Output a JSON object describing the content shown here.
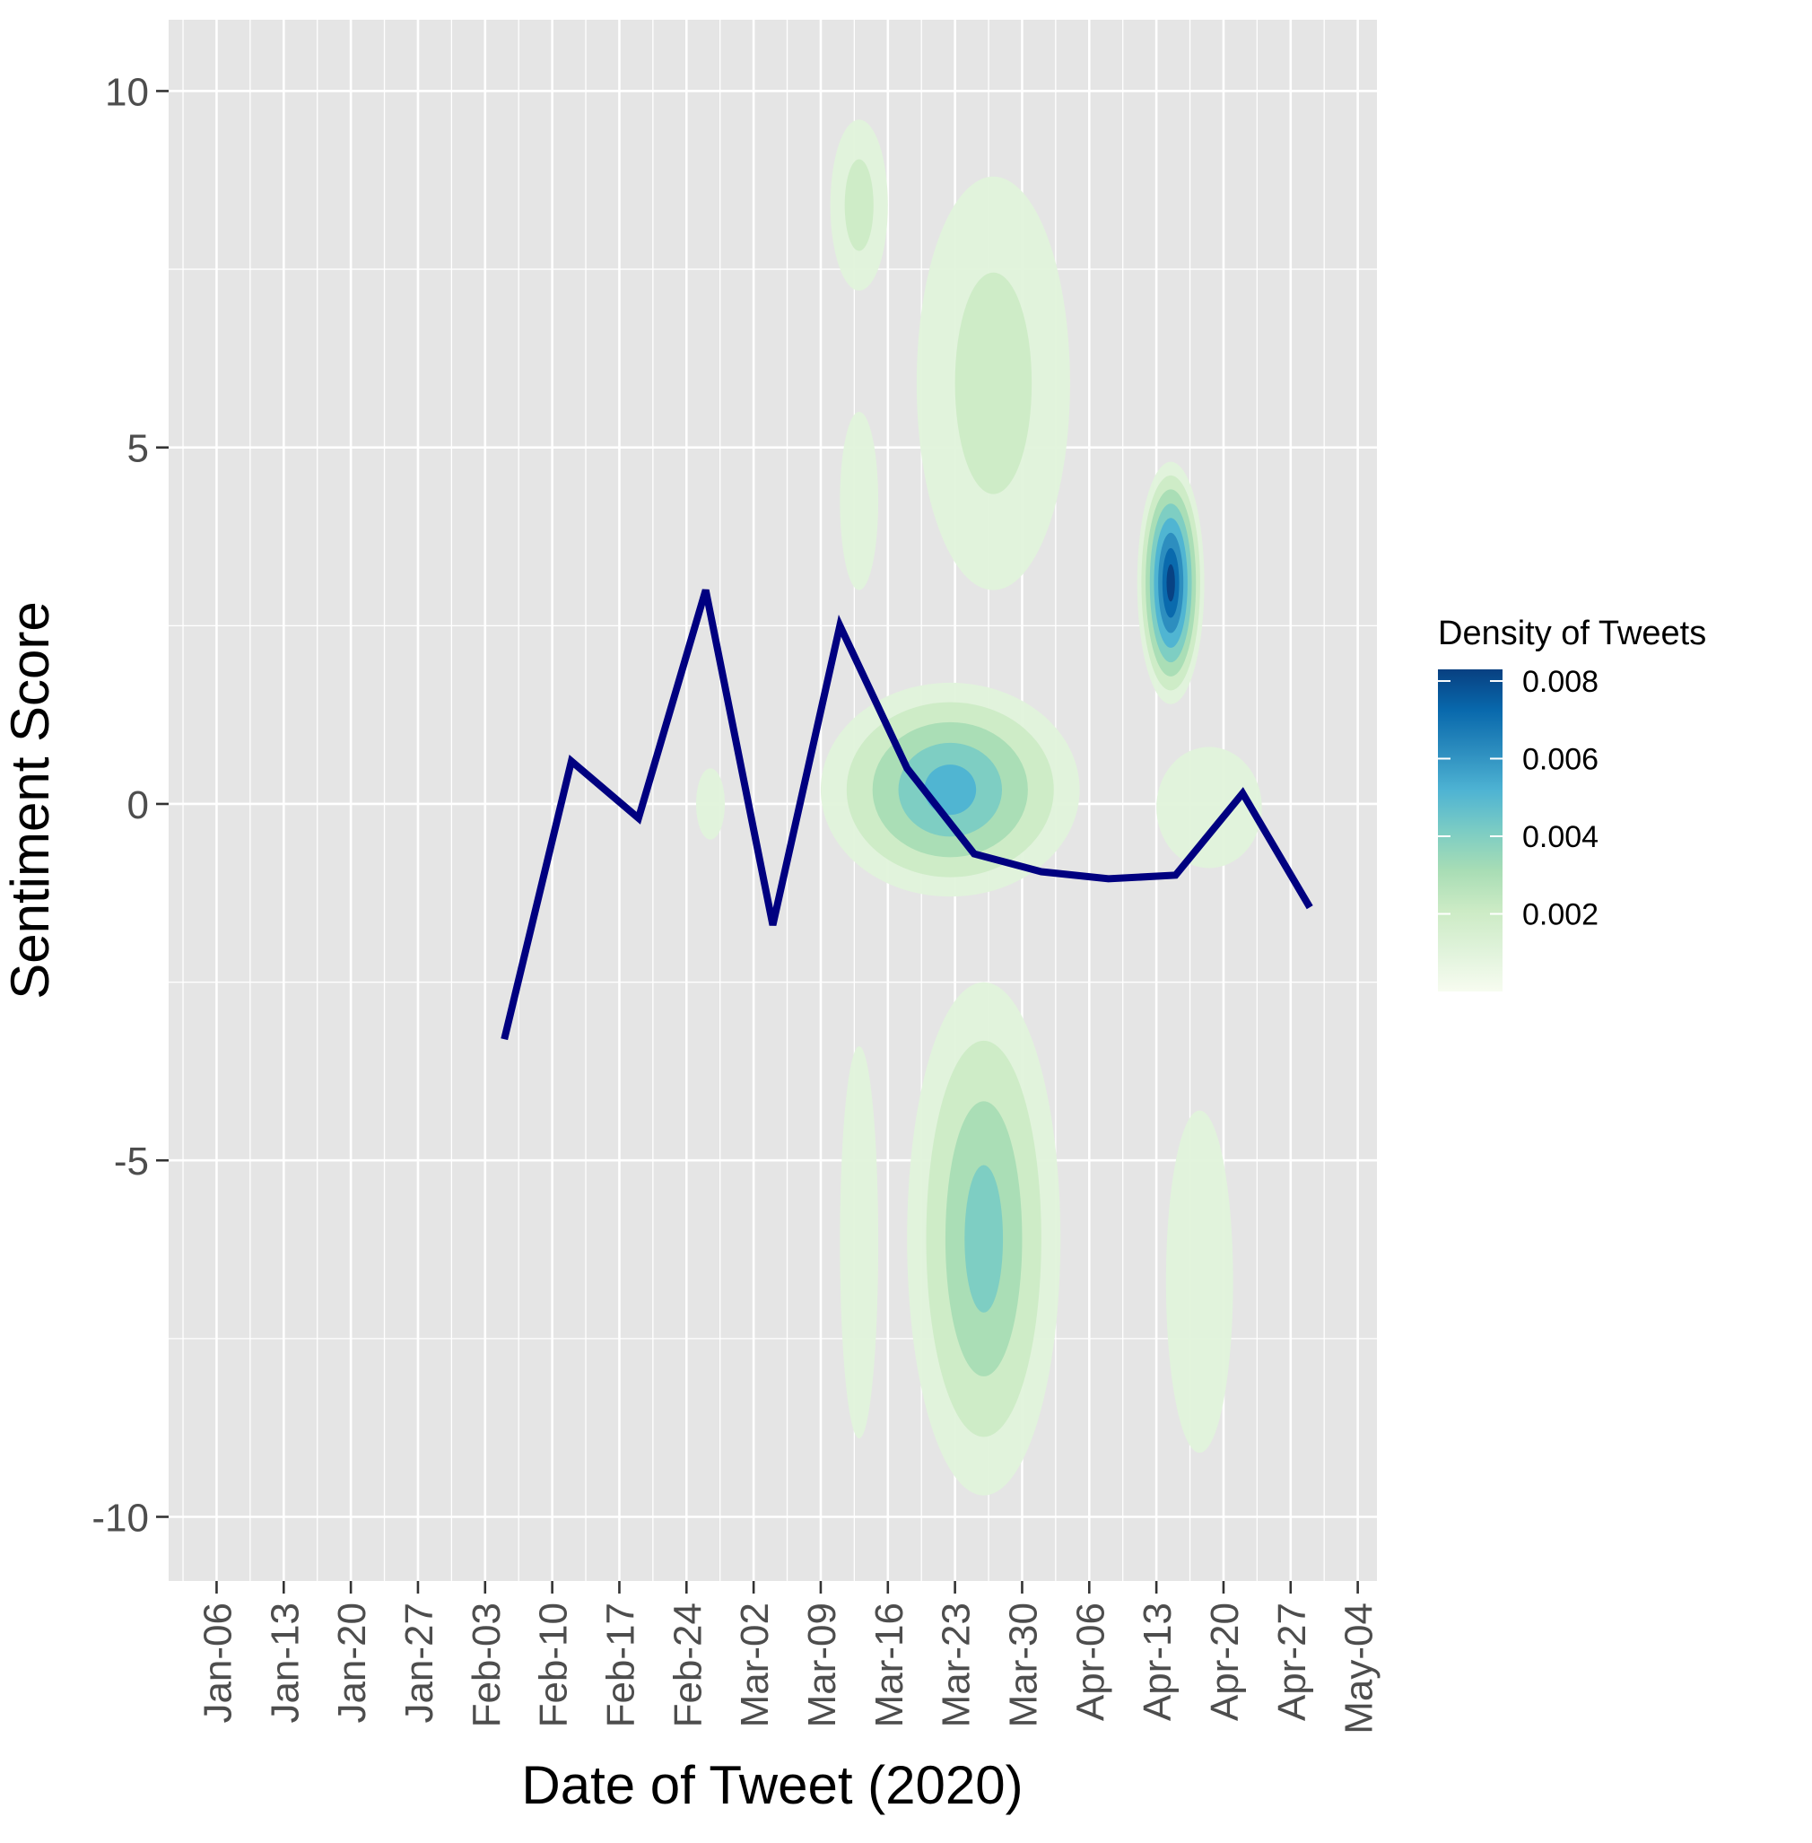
{
  "chart_data": {
    "type": "line",
    "title": "",
    "xlabel": "Date of Tweet (2020)",
    "ylabel": "Sentiment Score",
    "x_tick_labels": [
      "Jan-06",
      "Jan-13",
      "Jan-20",
      "Jan-27",
      "Feb-03",
      "Feb-10",
      "Feb-17",
      "Feb-24",
      "Mar-02",
      "Mar-09",
      "Mar-16",
      "Mar-23",
      "Mar-30",
      "Apr-06",
      "Apr-13",
      "Apr-20",
      "Apr-27",
      "May-04"
    ],
    "x_tick_dates": [
      "2020-01-06",
      "2020-01-13",
      "2020-01-20",
      "2020-01-27",
      "2020-02-03",
      "2020-02-10",
      "2020-02-17",
      "2020-02-24",
      "2020-03-02",
      "2020-03-09",
      "2020-03-16",
      "2020-03-23",
      "2020-03-30",
      "2020-04-06",
      "2020-04-13",
      "2020-04-20",
      "2020-04-27",
      "2020-05-04"
    ],
    "x_range": [
      "2020-01-01",
      "2020-05-06"
    ],
    "y_ticks": [
      10,
      5,
      0,
      -5,
      -10
    ],
    "y_tick_labels": [
      "10",
      "5",
      "0",
      "-5",
      "-10"
    ],
    "ylim": [
      -10.9,
      11.0
    ],
    "grid": true,
    "series": [
      {
        "color": "#000080",
        "points": [
          {
            "x": "2020-02-05",
            "y": -3.3
          },
          {
            "x": "2020-02-12",
            "y": 0.6
          },
          {
            "x": "2020-02-19",
            "y": -0.2
          },
          {
            "x": "2020-02-26",
            "y": 3.0
          },
          {
            "x": "2020-03-04",
            "y": -1.7
          },
          {
            "x": "2020-03-11",
            "y": 2.5
          },
          {
            "x": "2020-03-18",
            "y": 0.5
          },
          {
            "x": "2020-03-25",
            "y": -0.7
          },
          {
            "x": "2020-04-01",
            "y": -0.95
          },
          {
            "x": "2020-04-08",
            "y": -1.05
          },
          {
            "x": "2020-04-15",
            "y": -1.0
          },
          {
            "x": "2020-04-22",
            "y": 0.15
          },
          {
            "x": "2020-04-29",
            "y": -1.45
          }
        ]
      }
    ],
    "density_overlay": {
      "kind": "filled 2D density contours of tweets",
      "regions": [
        {
          "x_from": "2020-03-10",
          "x_to": "2020-03-16",
          "y_from": 7.2,
          "y_to": 9.6,
          "peak": 0.002
        },
        {
          "x_from": "2020-03-11",
          "x_to": "2020-03-15",
          "y_from": 3.0,
          "y_to": 5.5,
          "peak": 0.001
        },
        {
          "x_from": "2020-03-19",
          "x_to": "2020-04-04",
          "y_from": 3.0,
          "y_to": 8.8,
          "peak": 0.002
        },
        {
          "x_from": "2020-03-09",
          "x_to": "2020-04-05",
          "y_from": -1.3,
          "y_to": 1.7,
          "peak": 0.005
        },
        {
          "x_from": "2020-02-25",
          "x_to": "2020-02-28",
          "y_from": -0.5,
          "y_to": 0.5,
          "peak": 0.001
        },
        {
          "x_from": "2020-04-11",
          "x_to": "2020-04-18",
          "y_from": 1.4,
          "y_to": 4.8,
          "peak": 0.008
        },
        {
          "x_from": "2020-04-13",
          "x_to": "2020-04-24",
          "y_from": -0.9,
          "y_to": 0.8,
          "peak": 0.001
        },
        {
          "x_from": "2020-03-18",
          "x_to": "2020-04-03",
          "y_from": -9.7,
          "y_to": -2.5,
          "peak": 0.004
        },
        {
          "x_from": "2020-03-11",
          "x_to": "2020-03-15",
          "y_from": -8.9,
          "y_to": -3.4,
          "peak": 0.001
        },
        {
          "x_from": "2020-04-14",
          "x_to": "2020-04-21",
          "y_from": -9.1,
          "y_to": -4.3,
          "peak": 0.001
        }
      ]
    },
    "legend": {
      "title": "Density of Tweets",
      "position": "right",
      "labels": [
        "0.008",
        "0.006",
        "0.004",
        "0.002"
      ],
      "values": [
        0.008,
        0.006,
        0.004,
        0.002
      ],
      "range": [
        0.0,
        0.0083
      ],
      "colors": [
        "#F7FCF0",
        "#E0F3DB",
        "#CCEBC5",
        "#A8DDB5",
        "#7BCCC4",
        "#4EB3D3",
        "#2B8CBE",
        "#0868AC",
        "#084081"
      ]
    },
    "colors": {
      "panel_background": "#E5E5E5",
      "grid": "#FFFFFF",
      "line": "#000080"
    }
  }
}
